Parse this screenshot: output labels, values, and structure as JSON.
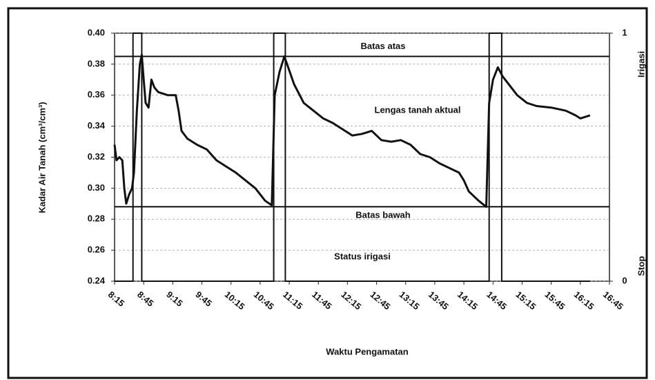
{
  "chart_data": {
    "type": "line",
    "x_label": "Waktu Pengamatan",
    "y_label": "Kadar Air Tanah (cm³/cm³)",
    "xlim": [
      "8:15",
      "16:45"
    ],
    "xticks": [
      "8:15",
      "8:45",
      "9:15",
      "9:45",
      "10:15",
      "10:45",
      "11:15",
      "11:45",
      "12:15",
      "12:45",
      "13:15",
      "13:45",
      "14:15",
      "14:45",
      "15:15",
      "15:45",
      "16:15",
      "16:45"
    ],
    "ylim": [
      0.24,
      0.4
    ],
    "yticks": [
      0.24,
      0.26,
      0.28,
      {
        "value": 0.3,
        "label": "0.30"
      },
      0.32,
      0.34,
      0.36,
      0.38,
      {
        "value": 0.4,
        "label": "0.40"
      }
    ],
    "y2lim": [
      0,
      1
    ],
    "y2ticks": [
      0,
      1
    ],
    "y2_annotations": [
      {
        "value": 1,
        "label": "Irigasi"
      },
      {
        "value": 0,
        "label": "Stop"
      }
    ],
    "grid": true,
    "reference_lines": [
      {
        "label": "Batas atas",
        "value": 0.385
      },
      {
        "label": "Batas bawah",
        "value": 0.288
      }
    ],
    "series": [
      {
        "name": "Lengas tanah aktual",
        "color": "#111111",
        "x": [
          "8:15",
          "8:17",
          "8:20",
          "8:23",
          "8:25",
          "8:27",
          "8:30",
          "8:33",
          "8:35",
          "8:38",
          "8:41",
          "8:43",
          "8:45",
          "8:47",
          "8:50",
          "8:53",
          "8:56",
          "9:00",
          "9:10",
          "9:18",
          "9:21",
          "9:24",
          "9:30",
          "9:40",
          "9:50",
          "10:00",
          "10:10",
          "10:20",
          "10:30",
          "10:40",
          "10:50",
          "10:57",
          "11:00",
          "11:05",
          "11:10",
          "11:15",
          "11:20",
          "11:30",
          "11:40",
          "11:50",
          "12:00",
          "12:10",
          "12:20",
          "12:30",
          "12:40",
          "12:50",
          "13:00",
          "13:10",
          "13:20",
          "13:30",
          "13:40",
          "13:50",
          "14:00",
          "14:10",
          "14:15",
          "14:20",
          "14:30",
          "14:38",
          "14:41",
          "14:45",
          "14:50",
          "14:55",
          "15:00",
          "15:10",
          "15:20",
          "15:30",
          "15:45",
          "16:00",
          "16:10",
          "16:15",
          "16:25"
        ],
        "values": [
          0.328,
          0.318,
          0.32,
          0.318,
          0.3,
          0.29,
          0.296,
          0.3,
          0.31,
          0.35,
          0.38,
          0.386,
          0.37,
          0.355,
          0.352,
          0.37,
          0.365,
          0.362,
          0.36,
          0.36,
          0.35,
          0.337,
          0.332,
          0.328,
          0.325,
          0.318,
          0.314,
          0.31,
          0.305,
          0.3,
          0.292,
          0.289,
          0.36,
          0.375,
          0.385,
          0.376,
          0.367,
          0.355,
          0.35,
          0.345,
          0.342,
          0.338,
          0.334,
          0.335,
          0.337,
          0.331,
          0.33,
          0.331,
          0.328,
          0.322,
          0.32,
          0.316,
          0.313,
          0.31,
          0.305,
          0.298,
          0.292,
          0.288,
          0.355,
          0.37,
          0.378,
          0.372,
          0.368,
          0.36,
          0.355,
          0.353,
          0.352,
          0.35,
          0.347,
          0.345,
          0.347
        ]
      },
      {
        "name": "Status irigasi",
        "color": "#111111",
        "axis": "y2",
        "x": [
          "8:15",
          "8:34",
          "8:34",
          "8:43",
          "8:43",
          "10:59",
          "10:59",
          "11:11",
          "11:11",
          "14:41",
          "14:41",
          "14:54",
          "14:54",
          "16:25"
        ],
        "values": [
          0,
          0,
          1,
          1,
          0,
          0,
          1,
          1,
          0,
          0,
          1,
          1,
          0,
          0
        ]
      }
    ]
  }
}
